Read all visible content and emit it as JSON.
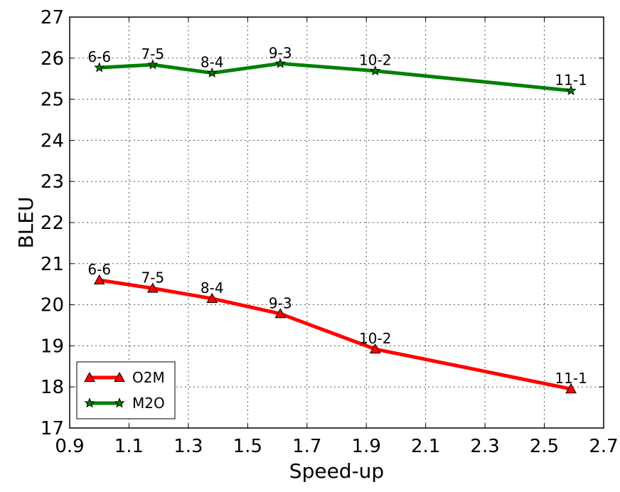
{
  "chart_data": {
    "type": "line",
    "xlabel": "Speed-up",
    "ylabel": "BLEU",
    "xlim": [
      0.9,
      2.7
    ],
    "ylim": [
      17,
      27
    ],
    "xticks": [
      0.9,
      1.1,
      1.3,
      1.5,
      1.7,
      1.9,
      2.1,
      2.3,
      2.5,
      2.7
    ],
    "yticks": [
      17,
      18,
      19,
      20,
      21,
      22,
      23,
      24,
      25,
      26,
      27
    ],
    "xtick_labels": [
      "0.9",
      "1.1",
      "1.3",
      "1.5",
      "1.7",
      "1.9",
      "2.1",
      "2.3",
      "2.5",
      "2.7"
    ],
    "ytick_labels": [
      "17",
      "18",
      "19",
      "20",
      "21",
      "22",
      "23",
      "24",
      "25",
      "26",
      "27"
    ],
    "grid": true,
    "legend_position": "bottom-left",
    "series": [
      {
        "name": "O2M",
        "color": "#ff0000",
        "marker": "triangle",
        "x": [
          1.0,
          1.18,
          1.38,
          1.61,
          1.93,
          2.59
        ],
        "y": [
          20.6,
          20.4,
          20.15,
          19.78,
          18.92,
          17.95
        ],
        "labels": [
          "6-6",
          "7-5",
          "8-4",
          "9-3",
          "10-2",
          "11-1"
        ]
      },
      {
        "name": "M2O",
        "color": "#008000",
        "marker": "star",
        "x": [
          1.0,
          1.18,
          1.38,
          1.61,
          1.93,
          2.59
        ],
        "y": [
          25.77,
          25.84,
          25.64,
          25.87,
          25.69,
          25.21
        ],
        "labels": [
          "6-6",
          "7-5",
          "8-4",
          "9-3",
          "10-2",
          "11-1"
        ]
      }
    ]
  }
}
